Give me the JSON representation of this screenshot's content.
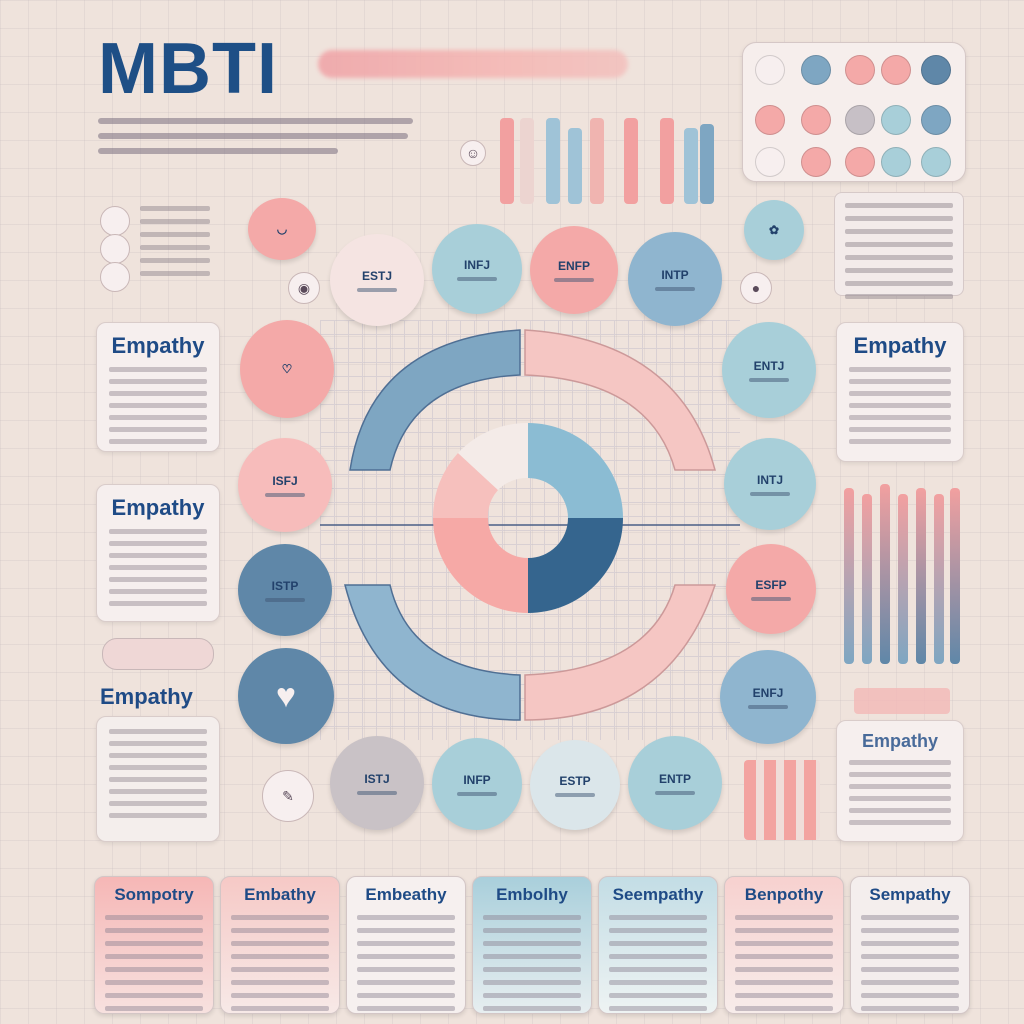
{
  "title": "MBTI",
  "empathy_cards": [
    {
      "title": "Empathy"
    },
    {
      "title": "Empathy"
    },
    {
      "title": "Empathy"
    },
    {
      "title": "Empathy"
    },
    {
      "title": "Empathy"
    }
  ],
  "bottom_cards": [
    {
      "title": "Sompotry"
    },
    {
      "title": "Embathy"
    },
    {
      "title": "Embeathy"
    },
    {
      "title": "Embolhy"
    },
    {
      "title": "Seempathy"
    },
    {
      "title": "Benpothy"
    },
    {
      "title": "Sempathy"
    }
  ],
  "icons": {
    "heart": "heart-icon",
    "brain": "brain-icon",
    "chat": "chat-bubble-icon"
  },
  "colors": {
    "navy": "#1e4f86",
    "pink": "#f4a9a8",
    "blue": "#a8cfd9",
    "steel": "#5f87a8",
    "background": "#efe3dc"
  },
  "heart_glyph": "♥"
}
